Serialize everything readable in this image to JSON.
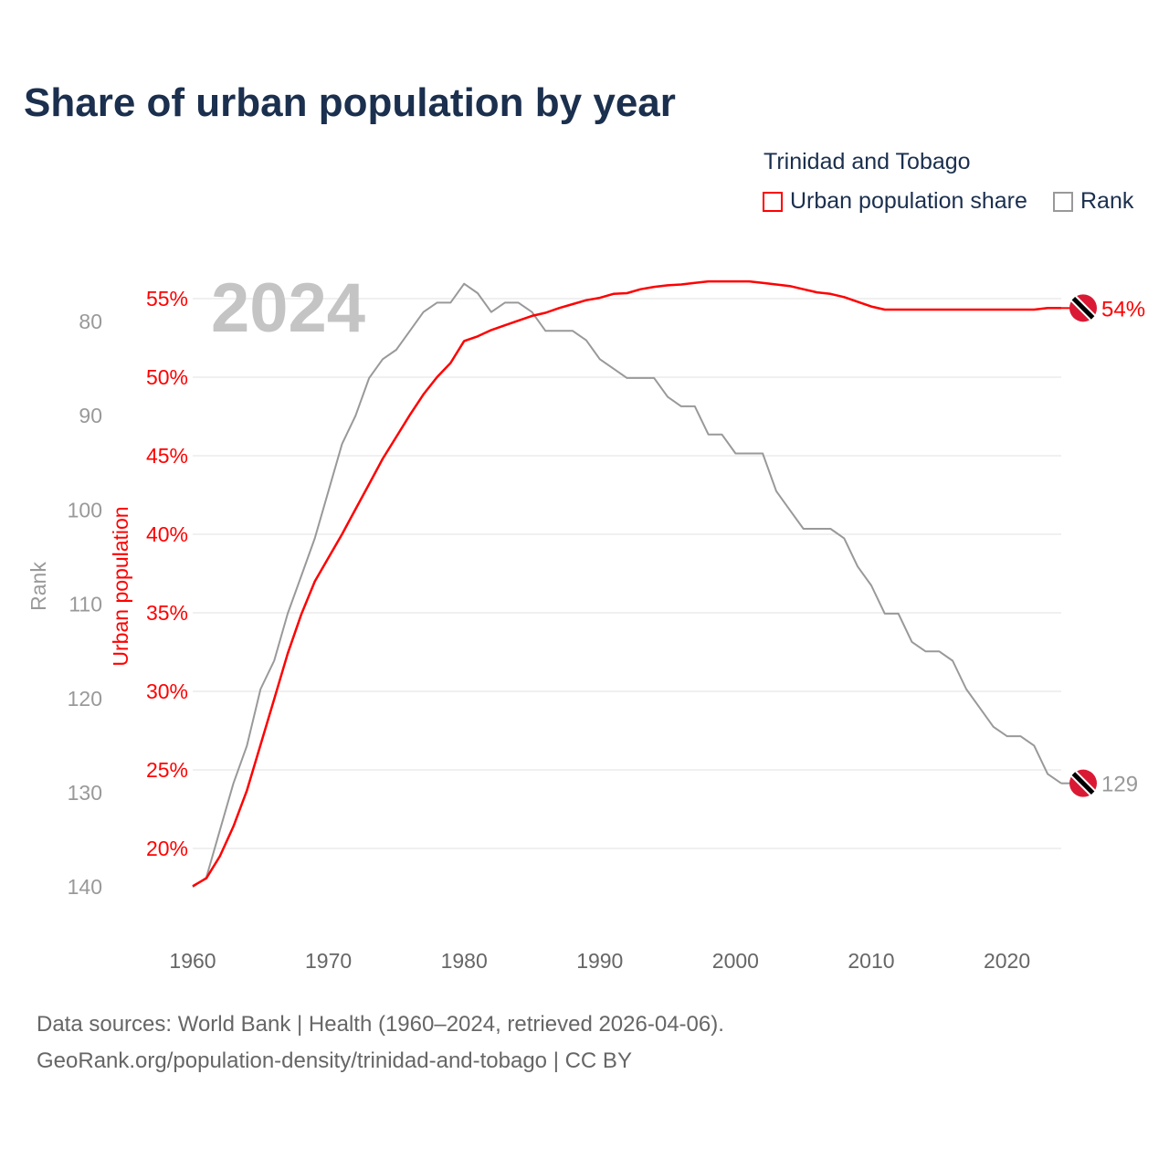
{
  "chart_data": {
    "type": "line",
    "title": "Share of urban population by year",
    "legend_title": "Trinidad and Tobago",
    "legend_placement": "top-right",
    "year_label": "2024",
    "x": [
      1960,
      1961,
      1962,
      1963,
      1964,
      1965,
      1966,
      1967,
      1968,
      1969,
      1970,
      1971,
      1972,
      1973,
      1974,
      1975,
      1976,
      1977,
      1978,
      1979,
      1980,
      1981,
      1982,
      1983,
      1984,
      1985,
      1986,
      1987,
      1988,
      1989,
      1990,
      1991,
      1992,
      1993,
      1994,
      1995,
      1996,
      1997,
      1998,
      1999,
      2000,
      2001,
      2002,
      2003,
      2004,
      2005,
      2006,
      2007,
      2008,
      2009,
      2010,
      2011,
      2012,
      2013,
      2014,
      2015,
      2016,
      2017,
      2018,
      2019,
      2020,
      2021,
      2022,
      2023,
      2024
    ],
    "xlim": [
      1960,
      2024
    ],
    "xticks": [
      "1960",
      "1970",
      "1980",
      "1990",
      "2000",
      "2010",
      "2020"
    ],
    "series": [
      {
        "name": "Urban population share",
        "axis": "left-inner",
        "color": "#ff0000",
        "end_label": "54%",
        "values": [
          17.6,
          18.1,
          19.5,
          21.4,
          23.7,
          26.6,
          29.5,
          32.4,
          34.9,
          37.0,
          38.5,
          40.0,
          41.6,
          43.2,
          44.8,
          46.2,
          47.6,
          48.9,
          50.0,
          50.9,
          52.3,
          52.6,
          53.0,
          53.3,
          53.6,
          53.9,
          54.1,
          54.4,
          54.65,
          54.9,
          55.05,
          55.3,
          55.35,
          55.6,
          55.75,
          55.85,
          55.9,
          56.0,
          56.1,
          56.1,
          56.1,
          56.1,
          56.0,
          55.9,
          55.8,
          55.6,
          55.4,
          55.3,
          55.1,
          54.8,
          54.5,
          54.3,
          54.3,
          54.3,
          54.3,
          54.3,
          54.3,
          54.3,
          54.3,
          54.3,
          54.3,
          54.3,
          54.3,
          54.4,
          54.4
        ]
      },
      {
        "name": "Rank",
        "axis": "left-outer",
        "color": "#999999",
        "end_label": "129",
        "values": [
          140,
          139,
          134,
          129,
          125,
          119,
          116,
          111,
          107,
          103,
          98,
          93,
          90,
          86,
          84,
          83,
          81,
          79,
          78,
          78,
          76,
          77,
          79,
          78,
          78,
          79,
          81,
          81,
          81,
          82,
          84,
          85,
          86,
          86,
          86,
          88,
          89,
          89,
          92,
          92,
          94,
          94,
          94,
          98,
          100,
          102,
          102,
          102,
          103,
          106,
          108,
          111,
          111,
          114,
          115,
          115,
          116,
          119,
          121,
          123,
          124,
          124,
          125,
          128,
          129
        ]
      }
    ],
    "ylabel_urban": "Urban population",
    "yticks_urban": [
      "20%",
      "25%",
      "30%",
      "35%",
      "40%",
      "45%",
      "50%",
      "55%"
    ],
    "ylim_urban": [
      17.55,
      57
    ],
    "ylabel_rank": "Rank",
    "yticks_rank": [
      "80",
      "90",
      "100",
      "110",
      "120",
      "130",
      "140"
    ],
    "ylim_rank": [
      80,
      140
    ],
    "grid": true
  },
  "footer": {
    "line1": "Data sources: World Bank | Health (1960–2024, retrieved 2026-04-06).",
    "line2": "GeoRank.org/population-density/trinidad-and-tobago | CC BY"
  }
}
